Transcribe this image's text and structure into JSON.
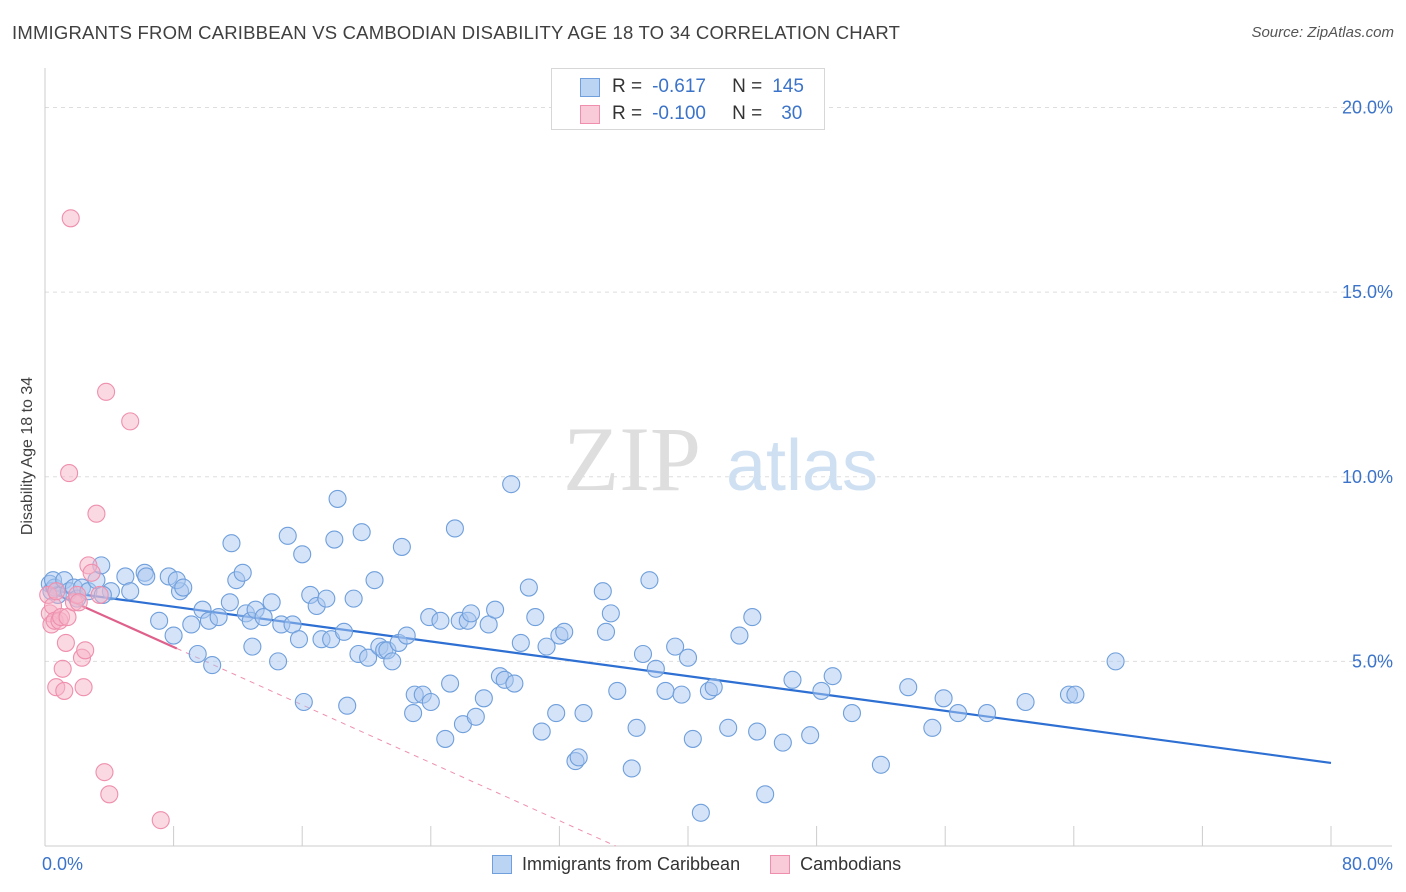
{
  "header": {
    "title": "IMMIGRANTS FROM CARIBBEAN VS CAMBODIAN DISABILITY AGE 18 TO 34 CORRELATION CHART",
    "source": "Source: ZipAtlas.com"
  },
  "watermark": {
    "zip": "ZIP",
    "atlas": "atlas"
  },
  "stats": {
    "r_label": "R =",
    "n_label": "N =",
    "rows": [
      {
        "r": "-0.617",
        "n": "145"
      },
      {
        "r": "-0.100",
        "n": "30"
      }
    ]
  },
  "colors": {
    "blue_fill": "#a9c8ef",
    "blue_stroke": "#6f9fdc",
    "blue_line": "#2d6fd2",
    "pink_fill": "#f6b3c8",
    "pink_stroke": "#ef8fad",
    "pink_line": "#e0608c",
    "axis_text": "#3b73c9",
    "grid": "#dddddd"
  },
  "chart_data": {
    "type": "scatter",
    "title": "IMMIGRANTS FROM CARIBBEAN VS CAMBODIAN DISABILITY AGE 18 TO 34 CORRELATION CHART",
    "xlabel": "",
    "ylabel": "Disability Age 18 to 34",
    "xlim": [
      0,
      80
    ],
    "ylim": [
      0,
      20.8
    ],
    "x_tick_labels": [
      "0.0%",
      "80.0%"
    ],
    "y_ticks": [
      5,
      10,
      15,
      20
    ],
    "y_tick_labels": [
      "5.0%",
      "10.0%",
      "15.0%",
      "20.0%"
    ],
    "legend": [
      "Immigrants from Caribbean",
      "Cambodians"
    ],
    "series": [
      {
        "name": "Immigrants from Caribbean",
        "r": -0.617,
        "n": 145,
        "trend": {
          "x": [
            0,
            80
          ],
          "y": [
            6.95,
            2.25
          ]
        },
        "points": [
          [
            0.3,
            7.1
          ],
          [
            0.4,
            6.9
          ],
          [
            0.6,
            7.0
          ],
          [
            0.8,
            6.8
          ],
          [
            0.5,
            7.2
          ],
          [
            1.2,
            7.2
          ],
          [
            1.5,
            6.9
          ],
          [
            1.8,
            7.0
          ],
          [
            2.0,
            6.7
          ],
          [
            2.3,
            7.0
          ],
          [
            2.7,
            6.9
          ],
          [
            3.2,
            7.2
          ],
          [
            3.5,
            7.6
          ],
          [
            4.1,
            6.9
          ],
          [
            3.6,
            6.8
          ],
          [
            5.0,
            7.3
          ],
          [
            5.3,
            6.9
          ],
          [
            6.2,
            7.4
          ],
          [
            6.3,
            7.3
          ],
          [
            7.1,
            6.1
          ],
          [
            7.7,
            7.3
          ],
          [
            8.0,
            5.7
          ],
          [
            8.4,
            6.9
          ],
          [
            8.2,
            7.2
          ],
          [
            8.6,
            7.0
          ],
          [
            9.1,
            6.0
          ],
          [
            9.5,
            5.2
          ],
          [
            9.8,
            6.4
          ],
          [
            10.2,
            6.1
          ],
          [
            10.4,
            4.9
          ],
          [
            10.8,
            6.2
          ],
          [
            11.5,
            6.6
          ],
          [
            11.6,
            8.2
          ],
          [
            11.9,
            7.2
          ],
          [
            12.3,
            7.4
          ],
          [
            12.5,
            6.3
          ],
          [
            12.8,
            6.1
          ],
          [
            12.9,
            5.4
          ],
          [
            13.1,
            6.4
          ],
          [
            13.6,
            6.2
          ],
          [
            14.1,
            6.6
          ],
          [
            14.5,
            5.0
          ],
          [
            14.7,
            6.0
          ],
          [
            15.1,
            8.4
          ],
          [
            15.4,
            6.0
          ],
          [
            15.8,
            5.6
          ],
          [
            16.0,
            7.9
          ],
          [
            16.1,
            3.9
          ],
          [
            16.5,
            6.8
          ],
          [
            16.9,
            6.5
          ],
          [
            17.2,
            5.6
          ],
          [
            17.5,
            6.7
          ],
          [
            17.8,
            5.6
          ],
          [
            18.0,
            8.3
          ],
          [
            18.2,
            9.4
          ],
          [
            18.6,
            5.8
          ],
          [
            18.8,
            3.8
          ],
          [
            19.2,
            6.7
          ],
          [
            19.5,
            5.2
          ],
          [
            19.7,
            8.5
          ],
          [
            20.1,
            5.1
          ],
          [
            20.5,
            7.2
          ],
          [
            20.8,
            5.4
          ],
          [
            21.1,
            5.3
          ],
          [
            21.3,
            5.3
          ],
          [
            21.6,
            5.0
          ],
          [
            22.0,
            5.5
          ],
          [
            22.2,
            8.1
          ],
          [
            22.5,
            5.7
          ],
          [
            23.0,
            4.1
          ],
          [
            22.9,
            3.6
          ],
          [
            23.5,
            4.1
          ],
          [
            23.9,
            6.2
          ],
          [
            24.0,
            3.9
          ],
          [
            24.6,
            6.1
          ],
          [
            24.9,
            2.9
          ],
          [
            25.2,
            4.4
          ],
          [
            25.5,
            8.6
          ],
          [
            25.8,
            6.1
          ],
          [
            26.0,
            3.3
          ],
          [
            26.3,
            6.1
          ],
          [
            26.5,
            6.3
          ],
          [
            26.8,
            3.5
          ],
          [
            27.3,
            4.0
          ],
          [
            27.6,
            6.0
          ],
          [
            28.0,
            6.4
          ],
          [
            28.3,
            4.6
          ],
          [
            28.6,
            4.5
          ],
          [
            29.0,
            9.8
          ],
          [
            29.2,
            4.4
          ],
          [
            29.6,
            5.5
          ],
          [
            30.1,
            7.0
          ],
          [
            30.5,
            6.2
          ],
          [
            30.9,
            3.1
          ],
          [
            31.2,
            5.4
          ],
          [
            31.8,
            3.6
          ],
          [
            32.0,
            5.7
          ],
          [
            32.3,
            5.8
          ],
          [
            33.0,
            2.3
          ],
          [
            33.2,
            2.4
          ],
          [
            33.5,
            3.6
          ],
          [
            34.7,
            6.9
          ],
          [
            34.9,
            5.8
          ],
          [
            35.2,
            6.3
          ],
          [
            35.6,
            4.2
          ],
          [
            36.5,
            2.1
          ],
          [
            36.8,
            3.2
          ],
          [
            37.2,
            5.2
          ],
          [
            37.6,
            7.2
          ],
          [
            38.0,
            4.8
          ],
          [
            38.6,
            4.2
          ],
          [
            39.2,
            5.4
          ],
          [
            39.6,
            4.1
          ],
          [
            40.0,
            5.1
          ],
          [
            40.3,
            2.9
          ],
          [
            40.8,
            0.9
          ],
          [
            41.3,
            4.2
          ],
          [
            41.6,
            4.3
          ],
          [
            42.5,
            3.2
          ],
          [
            43.2,
            5.7
          ],
          [
            44.0,
            6.2
          ],
          [
            44.3,
            3.1
          ],
          [
            44.8,
            1.4
          ],
          [
            45.9,
            2.8
          ],
          [
            46.5,
            4.5
          ],
          [
            47.6,
            3.0
          ],
          [
            48.3,
            4.2
          ],
          [
            49.0,
            4.6
          ],
          [
            50.2,
            3.6
          ],
          [
            52.0,
            2.2
          ],
          [
            53.7,
            4.3
          ],
          [
            55.2,
            3.2
          ],
          [
            55.9,
            4.0
          ],
          [
            56.8,
            3.6
          ],
          [
            58.6,
            3.6
          ],
          [
            61.0,
            3.9
          ],
          [
            63.7,
            4.1
          ],
          [
            64.1,
            4.1
          ],
          [
            66.6,
            5.0
          ]
        ]
      },
      {
        "name": "Cambodians",
        "r": -0.1,
        "n": 30,
        "trend": {
          "x": [
            0,
            8.2
          ],
          "y": [
            6.95,
            5.35
          ]
        },
        "dashed_extension": {
          "x": [
            8.2,
            35.5
          ],
          "y": [
            5.35,
            0.0
          ]
        },
        "points": [
          [
            0.2,
            6.8
          ],
          [
            0.3,
            6.3
          ],
          [
            0.4,
            6.0
          ],
          [
            0.5,
            6.5
          ],
          [
            0.6,
            6.1
          ],
          [
            0.7,
            6.9
          ],
          [
            0.7,
            4.3
          ],
          [
            0.9,
            6.1
          ],
          [
            1.0,
            6.2
          ],
          [
            1.1,
            4.8
          ],
          [
            1.2,
            4.2
          ],
          [
            1.3,
            5.5
          ],
          [
            1.4,
            6.2
          ],
          [
            1.5,
            10.1
          ],
          [
            1.6,
            17.0
          ],
          [
            1.8,
            6.6
          ],
          [
            2.0,
            6.8
          ],
          [
            2.1,
            6.6
          ],
          [
            2.3,
            5.1
          ],
          [
            2.4,
            4.3
          ],
          [
            2.5,
            5.3
          ],
          [
            2.7,
            7.6
          ],
          [
            2.9,
            7.4
          ],
          [
            3.2,
            9.0
          ],
          [
            3.4,
            6.8
          ],
          [
            3.7,
            2.0
          ],
          [
            3.8,
            12.3
          ],
          [
            4.0,
            1.4
          ],
          [
            5.3,
            11.5
          ],
          [
            7.2,
            0.7
          ]
        ]
      }
    ]
  }
}
